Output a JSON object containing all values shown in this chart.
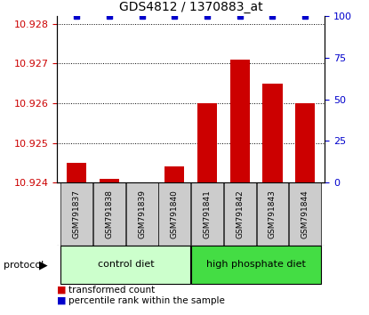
{
  "title": "GDS4812 / 1370883_at",
  "samples": [
    "GSM791837",
    "GSM791838",
    "GSM791839",
    "GSM791840",
    "GSM791841",
    "GSM791842",
    "GSM791843",
    "GSM791844"
  ],
  "transformed_counts": [
    10.9245,
    10.9241,
    10.924,
    10.9244,
    10.926,
    10.9271,
    10.9265,
    10.926
  ],
  "percentile_ranks": [
    100,
    100,
    100,
    100,
    100,
    100,
    100,
    100
  ],
  "y_min": 10.924,
  "y_max": 10.9282,
  "y_ticks": [
    10.924,
    10.925,
    10.926,
    10.927,
    10.928
  ],
  "y2_ticks": [
    0,
    25,
    50,
    75,
    100
  ],
  "groups": [
    {
      "label": "control diet",
      "start": 0,
      "end": 3,
      "color": "#ccffcc"
    },
    {
      "label": "high phosphate diet",
      "start": 4,
      "end": 7,
      "color": "#44dd44"
    }
  ],
  "protocol_label": "protocol",
  "bar_color": "#cc0000",
  "dot_color": "#0000cc",
  "bar_width": 0.6,
  "tick_label_color_left": "#cc0000",
  "tick_label_color_right": "#0000cc",
  "legend_red_label": "transformed count",
  "legend_blue_label": "percentile rank within the sample",
  "x_sample_box_color": "#cccccc",
  "title_fontsize": 10
}
